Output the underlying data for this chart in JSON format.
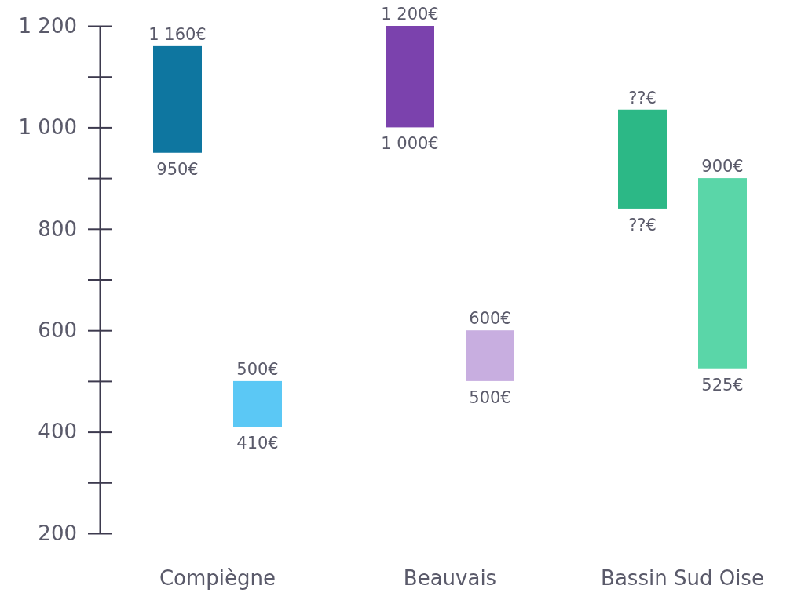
{
  "chart_data": {
    "type": "bar",
    "categories": [
      "Compiègne",
      "Beauvais",
      "Bassin Sud Oise"
    ],
    "series": [
      {
        "colors": [
          "#0e76a0",
          "#7b42ad",
          "#2cb886"
        ],
        "base": [
          950,
          1000,
          840
        ],
        "values": [
          210,
          200,
          195
        ]
      },
      {
        "colors": [
          "#5bc8f5",
          "#c8aee0",
          "#5ad6a8"
        ],
        "base": [
          410,
          500,
          525
        ],
        "values": [
          90,
          100,
          375
        ]
      }
    ],
    "ylim": [
      200,
      1200
    ],
    "yticks": [
      200,
      {
        "value": 300,
        "label": null
      },
      400,
      {
        "value": 500,
        "label": null
      },
      600,
      {
        "value": 700,
        "label": null
      },
      800,
      {
        "value": 900,
        "label": null
      },
      {
        "value": 1000,
        "label": "1 000"
      },
      {
        "value": 1100,
        "label": null
      },
      {
        "value": 1200,
        "label": "1 200"
      }
    ],
    "grid": false,
    "annotations": [
      "1 160€",
      "950€",
      "500€",
      "410€",
      "1 200€",
      "1 000€",
      "600€",
      "500€",
      "??€",
      "??€",
      "900€",
      "525€"
    ]
  }
}
